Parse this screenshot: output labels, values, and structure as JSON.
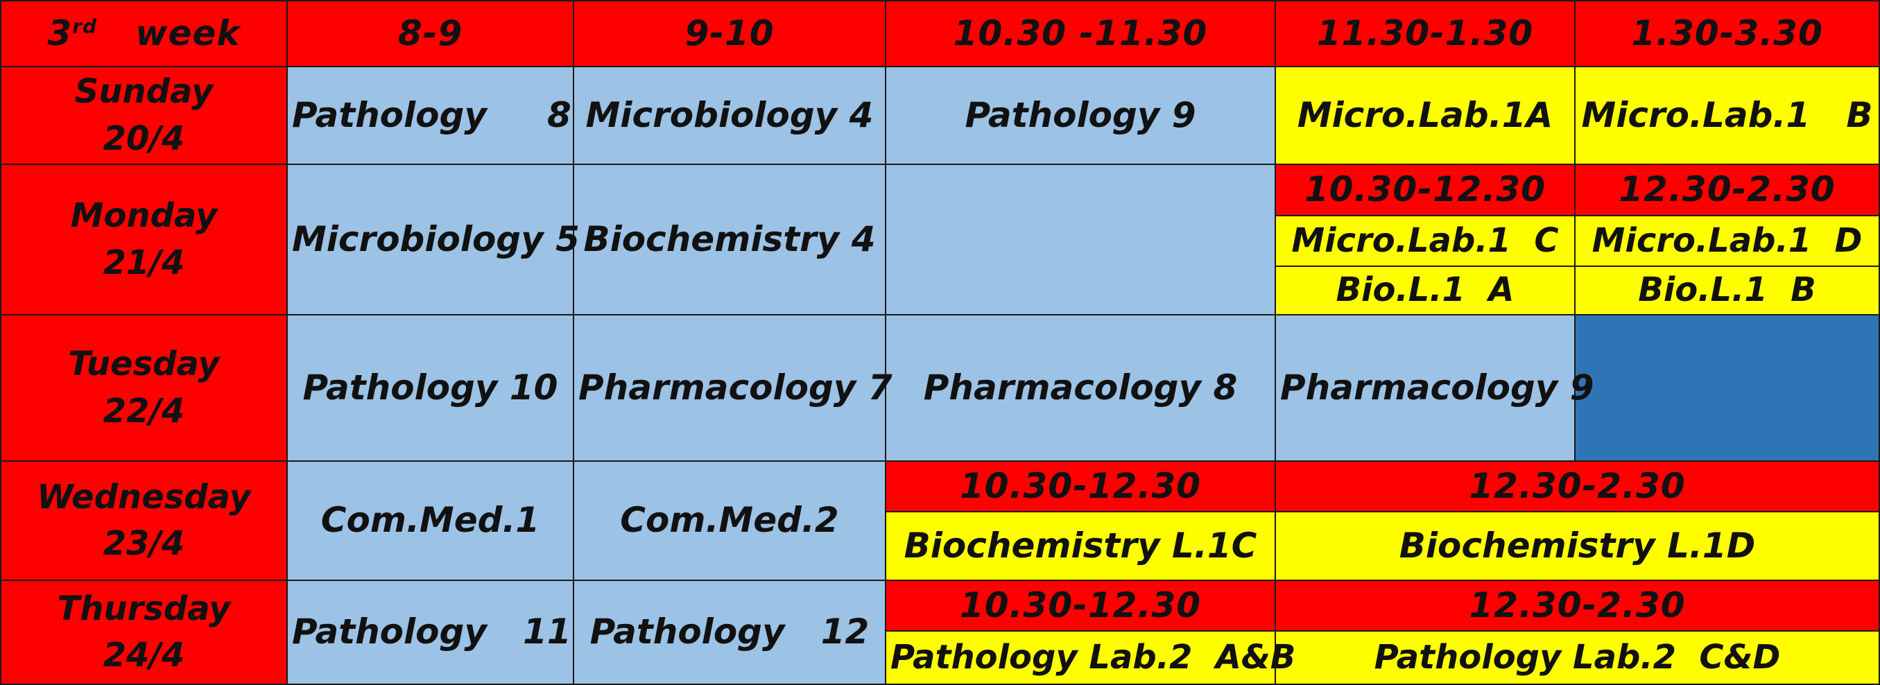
{
  "header": {
    "week_number": "3",
    "week_suffix": "rd",
    "week_word": "week",
    "times": [
      "8-9",
      "9-10",
      "10.30 -11.30",
      "11.30-1.30",
      "1.30-3.30"
    ]
  },
  "days": {
    "sunday": {
      "name": "Sunday",
      "date": "20/4"
    },
    "monday": {
      "name": "Monday",
      "date": "21/4"
    },
    "tuesday": {
      "name": "Tuesday",
      "date": "22/4"
    },
    "wednesday": {
      "name": "Wednesday",
      "date": "23/4"
    },
    "thursday": {
      "name": "Thursday",
      "date": "24/4"
    }
  },
  "sunday": {
    "s1": "Pathology     8",
    "s2": "Microbiology 4",
    "s3": "Pathology 9",
    "s4": "Micro.Lab.1A",
    "s5": "Micro.Lab.1   B"
  },
  "monday": {
    "s1": "Microbiology 5",
    "s2": "Biochemistry 4",
    "s3": "",
    "time_a": "10.30-12.30",
    "time_b": "12.30-2.30",
    "lab_a1": "Micro.Lab.1  C",
    "lab_b1": "Micro.Lab.1  D",
    "lab_a2": "Bio.L.1  A",
    "lab_b2": "Bio.L.1  B"
  },
  "tuesday": {
    "s1": "Pathology 10",
    "s2": "Pharmacology 7",
    "s3": "Pharmacology 8",
    "s4": "Pharmacology 9",
    "s5": ""
  },
  "wednesday": {
    "s1": "Com.Med.1",
    "s2": "Com.Med.2",
    "time_a": "10.30-12.30",
    "time_b": "12.30-2.30",
    "lab_a": "Biochemistry L.1C",
    "lab_b": "Biochemistry L.1D"
  },
  "thursday": {
    "s1": "Pathology   11",
    "s2": "Pathology   12",
    "time_a": "10.30-12.30",
    "time_b": "12.30-2.30",
    "lab_a": "Pathology Lab.2  A&B",
    "lab_b": "Pathology Lab.2  C&D"
  },
  "colors": {
    "header_red": "#ff0000",
    "lecture_blue": "#9cc2e5",
    "lab_yellow": "#ffff00",
    "empty_dark_blue": "#2e75b6"
  }
}
